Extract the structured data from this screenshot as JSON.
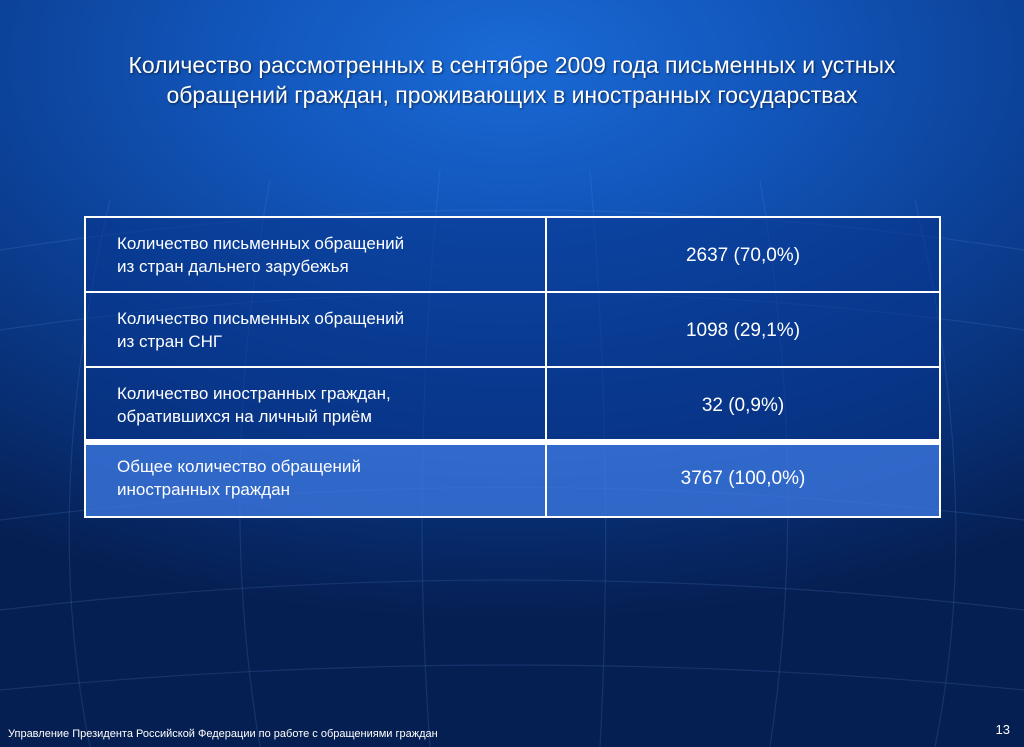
{
  "slide": {
    "title_lines": [
      "Количество рассмотренных в сентябре 2009 года письменных и устных",
      "обращений граждан, проживающих в иностранных государствах"
    ],
    "table": {
      "rows": [
        {
          "label_lines": [
            "Количество письменных обращений",
            "из стран дальнего зарубежья"
          ],
          "value": "2637 (70,0%)"
        },
        {
          "label_lines": [
            "Количество письменных обращений",
            "из стран СНГ"
          ],
          "value": "1098 (29,1%)"
        },
        {
          "label_lines": [
            "Количество иностранных граждан,",
            "обратившихся на личный приём"
          ],
          "value": "32 (0,9%)"
        },
        {
          "label_lines": [
            "Общее количество обращений",
            "иностранных граждан"
          ],
          "value": "3767 (100,0%)"
        }
      ]
    },
    "footer": "Управление Президента Российской Федерации по работе с обращениями граждан",
    "page_number": "13"
  },
  "colors": {
    "background_top": "#1a6ad6",
    "background_bottom": "#061f52",
    "table_border": "#ffffff",
    "total_row": "#3c78e1",
    "text": "#ffffff"
  }
}
